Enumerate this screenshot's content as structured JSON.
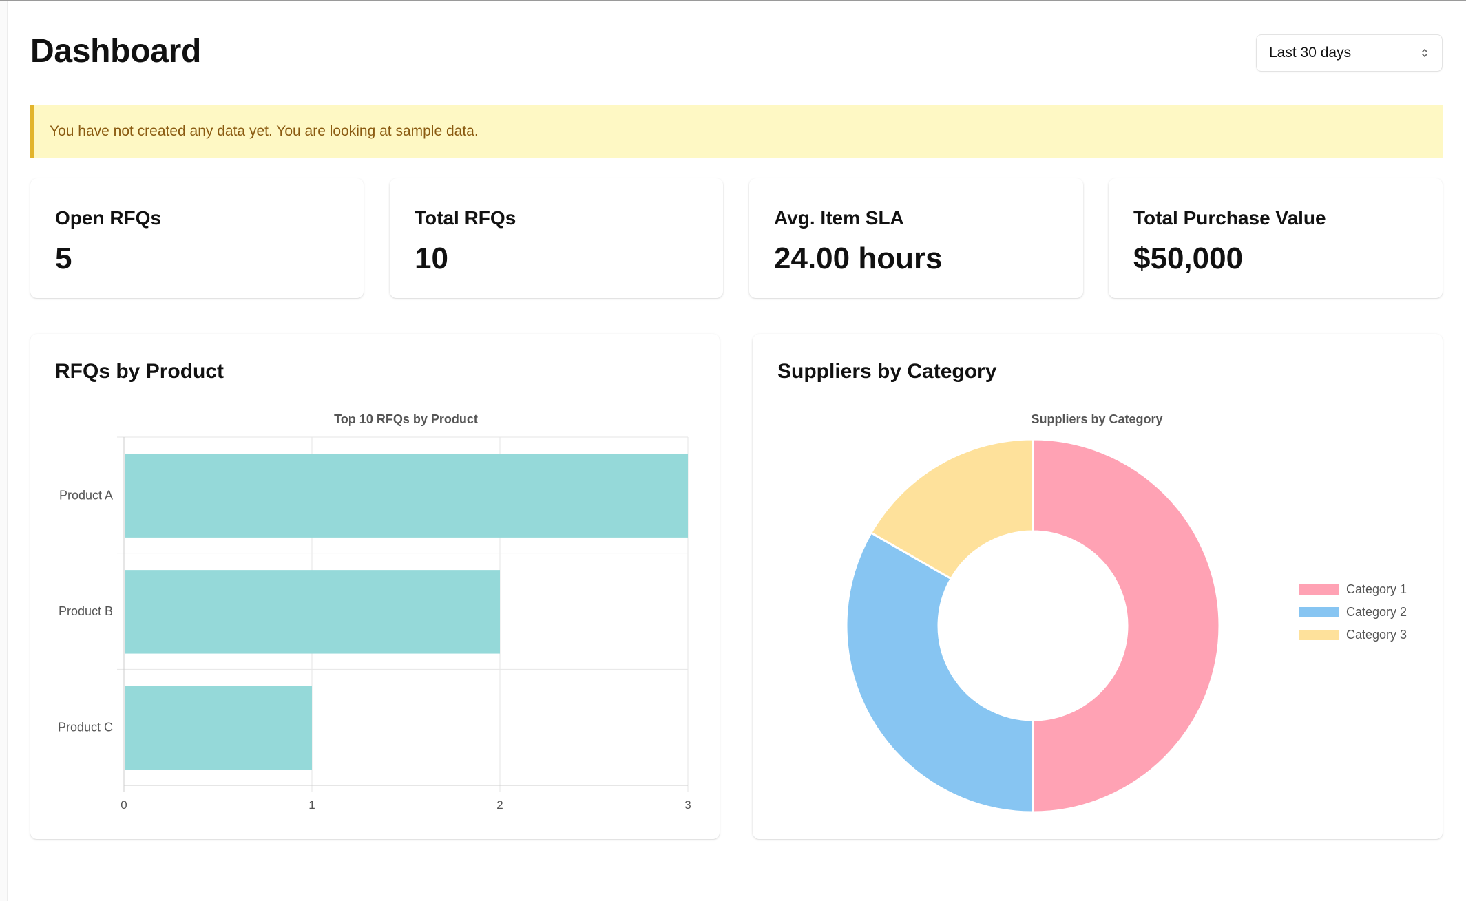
{
  "header": {
    "title": "Dashboard",
    "date_range": {
      "selected": "Last 30 days"
    }
  },
  "alert": {
    "message": "You have not created any data yet. You are looking at sample data."
  },
  "stats": [
    {
      "label": "Open RFQs",
      "value": "5"
    },
    {
      "label": "Total RFQs",
      "value": "10"
    },
    {
      "label": "Avg. Item SLA",
      "value": "24.00 hours"
    },
    {
      "label": "Total Purchase Value",
      "value": "$50,000"
    }
  ],
  "panels": {
    "rfqs": {
      "title": "RFQs by Product"
    },
    "suppliers": {
      "title": "Suppliers by Category"
    }
  },
  "chart_data": [
    {
      "type": "bar",
      "orientation": "horizontal",
      "title": "Top 10 RFQs by Product",
      "categories": [
        "Product A",
        "Product B",
        "Product C"
      ],
      "values": [
        3,
        2,
        1
      ],
      "xlim": [
        0,
        3
      ],
      "x_ticks": [
        0,
        1,
        2,
        3
      ],
      "grid": true,
      "color": "#95d9d9"
    },
    {
      "type": "pie",
      "variant": "doughnut",
      "title": "Suppliers by Category",
      "labels": [
        "Category 1",
        "Category 2",
        "Category 3"
      ],
      "values": [
        50,
        33.3,
        16.7
      ],
      "colors": [
        "#ffa2b4",
        "#87c5f2",
        "#fee19b"
      ],
      "legend": "right"
    }
  ]
}
